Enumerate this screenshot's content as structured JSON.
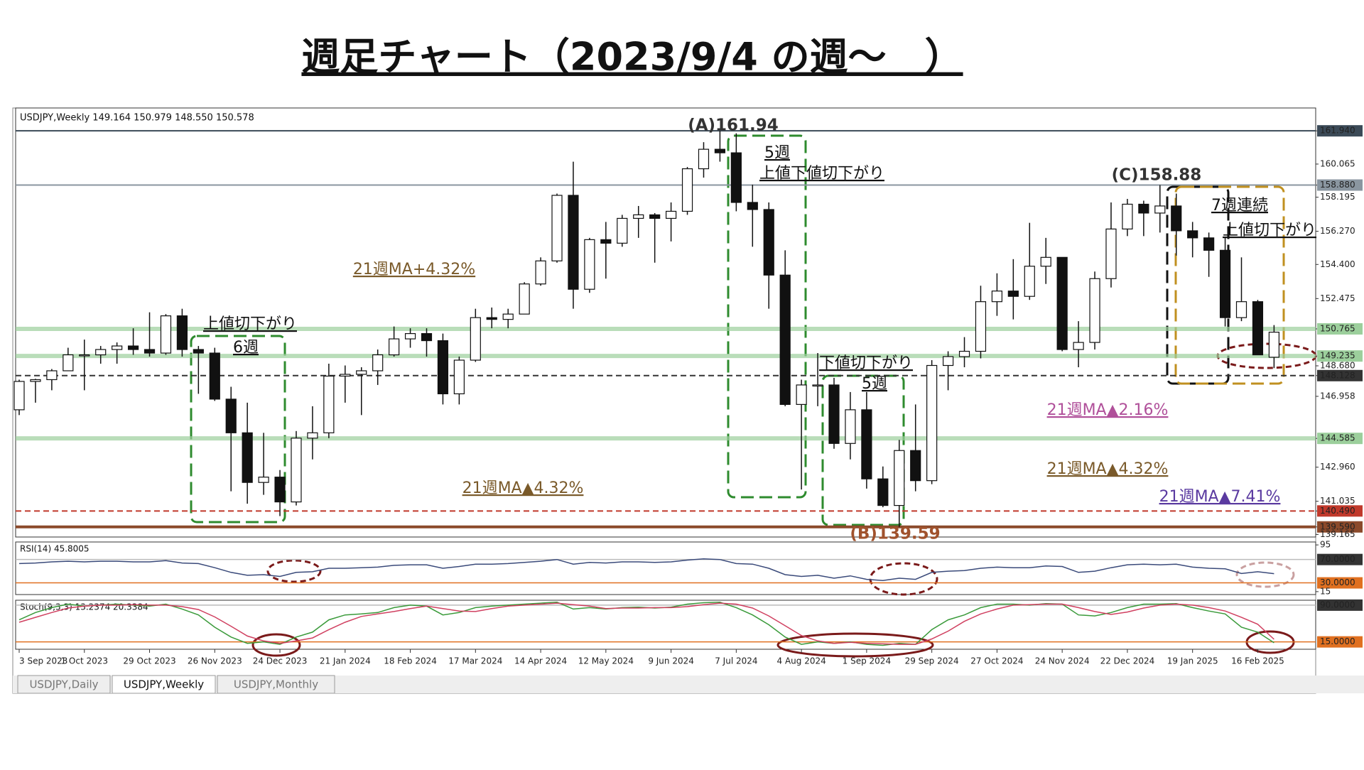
{
  "chart_data": {
    "type": "candlestick",
    "title": "週足チャート（2023/9/4 の週～　）",
    "header": "USDJPY,Weekly 149.164 150.979 148.550 150.578",
    "categories": [
      "3 Sep 2023",
      null,
      null,
      null,
      "1 Oct 2023",
      null,
      null,
      null,
      "29 Oct 2023",
      null,
      null,
      null,
      "26 Nov 2023",
      null,
      null,
      null,
      "24 Dec 2023",
      null,
      null,
      null,
      "21 Jan 2024",
      null,
      null,
      null,
      "18 Feb 2024",
      null,
      null,
      null,
      "17 Mar 2024",
      null,
      null,
      null,
      "14 Apr 2024",
      null,
      null,
      null,
      "12 May 2024",
      null,
      null,
      null,
      "9 Jun 2024",
      null,
      null,
      null,
      "7 Jul 2024",
      null,
      null,
      null,
      "4 Aug 2024",
      null,
      null,
      null,
      "1 Sep 2024",
      null,
      null,
      null,
      "29 Sep 2024",
      null,
      null,
      null,
      "27 Oct 2024",
      null,
      null,
      null,
      "24 Nov 2024",
      null,
      null,
      null,
      "22 Dec 2024",
      null,
      null,
      null,
      "19 Jan 2025",
      null,
      null,
      null,
      "16 Feb 2025",
      null
    ],
    "open": [
      146.2,
      147.8,
      147.9,
      148.4,
      149.3,
      149.3,
      149.6,
      149.8,
      149.6,
      149.4,
      151.5,
      149.6,
      149.4,
      146.8,
      144.9,
      142.1,
      142.4,
      141.0,
      144.6,
      144.9,
      148.1,
      148.2,
      148.4,
      149.3,
      150.2,
      150.5,
      150.1,
      147.1,
      149.0,
      151.4,
      151.3,
      151.6,
      153.3,
      154.6,
      158.3,
      153.0,
      155.8,
      155.6,
      157.0,
      157.2,
      157.0,
      157.4,
      159.8,
      160.9,
      160.7,
      157.9,
      157.5,
      153.8,
      146.5,
      147.6,
      147.6,
      144.3,
      146.2,
      142.3,
      140.8,
      143.9,
      142.2,
      148.7,
      149.2,
      149.5,
      152.3,
      152.9,
      152.6,
      154.3,
      154.8,
      149.6,
      150.0,
      153.6,
      156.4,
      157.8,
      157.3,
      157.7,
      156.3,
      155.9,
      155.2,
      151.4,
      152.3,
      149.164
    ],
    "high": [
      147.9,
      147.95,
      148.5,
      149.7,
      150.16,
      149.8,
      150.0,
      150.8,
      151.7,
      151.6,
      151.9,
      149.8,
      149.7,
      147.5,
      146.6,
      144.9,
      142.8,
      145.0,
      146.4,
      148.8,
      148.7,
      148.6,
      149.6,
      150.9,
      150.8,
      150.8,
      150.5,
      149.2,
      151.9,
      151.97,
      151.9,
      153.4,
      154.8,
      158.4,
      160.2,
      155.9,
      156.8,
      157.2,
      157.7,
      157.3,
      157.9,
      159.9,
      161.3,
      161.94,
      161.8,
      158.9,
      157.9,
      155.2,
      147.9,
      149.4,
      148.0,
      147.2,
      147.2,
      143.0,
      144.5,
      146.5,
      149.0,
      149.5,
      150.3,
      153.2,
      153.9,
      154.7,
      156.75,
      155.9,
      154.8,
      151.2,
      154.0,
      157.9,
      158.1,
      158.0,
      158.88,
      158.4,
      156.8,
      156.2,
      155.9,
      154.8,
      152.4,
      150.979
    ],
    "low": [
      145.9,
      146.6,
      147.3,
      148.4,
      147.3,
      148.8,
      148.8,
      149.3,
      149.2,
      149.3,
      149.2,
      147.1,
      146.7,
      141.6,
      140.9,
      141.4,
      140.2,
      140.8,
      143.4,
      144.6,
      146.6,
      145.9,
      147.6,
      149.2,
      149.7,
      149.2,
      146.5,
      146.5,
      148.9,
      150.8,
      150.8,
      151.6,
      153.2,
      154.5,
      151.9,
      152.8,
      153.6,
      155.4,
      155.9,
      154.5,
      155.7,
      157.2,
      159.3,
      160.2,
      157.4,
      155.4,
      151.9,
      146.4,
      141.7,
      146.4,
      144.0,
      143.4,
      141.75,
      140.7,
      139.59,
      141.6,
      142.0,
      147.3,
      148.6,
      149.1,
      151.5,
      151.3,
      152.4,
      153.3,
      149.5,
      148.6,
      149.6,
      153.1,
      156.0,
      156.0,
      156.2,
      154.9,
      154.8,
      153.7,
      150.9,
      151.2,
      149.3,
      148.55
    ],
    "close": [
      147.8,
      147.9,
      148.4,
      149.3,
      149.3,
      149.6,
      149.8,
      149.6,
      149.4,
      151.5,
      149.6,
      149.4,
      146.8,
      144.9,
      142.1,
      142.4,
      141.0,
      144.6,
      144.9,
      148.1,
      148.2,
      148.4,
      149.3,
      150.2,
      150.5,
      150.1,
      147.1,
      149.0,
      151.4,
      151.3,
      151.6,
      153.3,
      154.6,
      158.3,
      153.0,
      155.8,
      155.6,
      157.0,
      157.2,
      157.0,
      157.4,
      159.8,
      160.9,
      160.7,
      157.9,
      157.5,
      153.8,
      146.5,
      147.6,
      147.6,
      144.3,
      146.2,
      142.3,
      140.8,
      143.9,
      142.2,
      148.7,
      149.2,
      149.5,
      152.3,
      152.9,
      152.6,
      154.3,
      154.8,
      149.6,
      150.0,
      153.6,
      156.4,
      157.8,
      157.3,
      157.7,
      156.3,
      155.9,
      155.2,
      151.4,
      152.3,
      149.3,
      150.578
    ],
    "ylim": [
      139.02,
      163.23
    ],
    "yticks": [
      {
        "value": 161.94,
        "label": "161.940"
      },
      160.065,
      {
        "value": 158.88,
        "label": "158.880"
      },
      158.195,
      {
        "value": 156.27,
        "label": "156.270"
      },
      {
        "value": 154.4,
        "label": "154.400"
      },
      152.475,
      150.765,
      149.235,
      {
        "value": 148.68,
        "label": "148.680"
      },
      148.128,
      146.958,
      144.585,
      {
        "value": 142.96,
        "label": "142.960"
      },
      141.035,
      {
        "value": 140.49,
        "label": "140.490"
      },
      {
        "value": 139.59,
        "label": "139.590"
      },
      139.165
    ],
    "levels": [
      {
        "value": 161.94,
        "color": "#3b4a57"
      },
      {
        "value": 158.88,
        "color": "#8a96a0"
      },
      {
        "value": 150.765,
        "color": "#9ccf9c"
      },
      {
        "value": 149.235,
        "color": "#9ccf9c"
      },
      {
        "value": 148.128,
        "color": "#333333"
      },
      {
        "value": 144.585,
        "color": "#9ccf9c"
      },
      {
        "value": 140.49,
        "color": "#c0392b"
      },
      {
        "value": 139.59,
        "color": "#8b4a2b"
      }
    ],
    "annotations": [
      "(A)161.94",
      "5週",
      "上値下値切下がり",
      "上値切下がり",
      "6週",
      "7週連続",
      "上値切下がり",
      "下値切下がり",
      "5週",
      "(C)158.88",
      "(B)139.59",
      "21週MA+4.32%",
      "21週MA▲4.32%",
      "21週MA▲2.16%",
      "21週MA▲4.32%",
      "21週MA▲7.41%"
    ],
    "rsi": {
      "label": "RSI(14) 45.8005",
      "color": "#3a4a7a",
      "ylim": [
        10,
        100
      ],
      "yticks": [
        95,
        {
          "value": 70,
          "label": "70.0000"
        },
        {
          "value": 30,
          "label": "30.0000"
        },
        15
      ],
      "values": [
        63,
        64,
        66,
        67,
        66,
        67,
        67,
        66,
        66,
        68,
        64,
        63,
        56,
        48,
        43,
        44,
        41,
        48,
        49,
        55,
        55,
        56,
        57,
        60,
        61,
        61,
        55,
        58,
        62,
        62,
        63,
        65,
        67,
        70,
        62,
        65,
        64,
        66,
        66,
        65,
        66,
        69,
        71,
        70,
        63,
        62,
        55,
        44,
        41,
        43,
        38,
        42,
        36,
        34,
        38,
        36,
        48,
        50,
        51,
        55,
        57,
        56,
        56,
        59,
        58,
        48,
        50,
        56,
        61,
        62,
        61,
        62,
        57,
        55,
        54,
        46,
        49,
        45.8005
      ]
    },
    "stoch": {
      "label": "Stoch(9,3,3) 13.2374 20.3384",
      "ylim": [
        0,
        100
      ],
      "yticks": [
        {
          "value": 90,
          "label": "90.0000"
        },
        {
          "value": 15,
          "label": "15.0000"
        }
      ],
      "series": [
        {
          "color": "#3a9a3a",
          "values": [
            60,
            75,
            85,
            92,
            88,
            90,
            92,
            90,
            88,
            92,
            82,
            70,
            45,
            25,
            12,
            15,
            10,
            25,
            35,
            60,
            70,
            72,
            75,
            85,
            90,
            88,
            70,
            75,
            85,
            88,
            90,
            92,
            94,
            96,
            82,
            85,
            82,
            85,
            86,
            84,
            86,
            92,
            95,
            96,
            85,
            70,
            50,
            25,
            10,
            15,
            12,
            15,
            10,
            8,
            12,
            10,
            40,
            60,
            70,
            85,
            92,
            92,
            90,
            93,
            92,
            70,
            68,
            75,
            85,
            92,
            92,
            93,
            85,
            78,
            72,
            45,
            35,
            13.2374
          ]
        },
        {
          "color": "#d04060",
          "values": [
            55,
            65,
            75,
            84,
            88,
            90,
            90,
            91,
            90,
            90,
            87,
            81,
            66,
            47,
            27,
            17,
            12,
            17,
            23,
            40,
            55,
            67,
            72,
            77,
            83,
            88,
            83,
            78,
            77,
            83,
            88,
            90,
            92,
            94,
            91,
            88,
            83,
            84,
            84,
            85,
            85,
            87,
            91,
            94,
            92,
            84,
            68,
            48,
            28,
            17,
            12,
            14,
            12,
            11,
            10,
            10,
            21,
            37,
            57,
            72,
            82,
            90,
            91,
            92,
            92,
            85,
            77,
            71,
            76,
            84,
            90,
            92,
            90,
            85,
            78,
            65,
            51,
            20.3384
          ]
        }
      ]
    },
    "tabs": [
      "USDJPY,Daily",
      "USDJPY,Weekly",
      "USDJPY,Monthly"
    ]
  }
}
